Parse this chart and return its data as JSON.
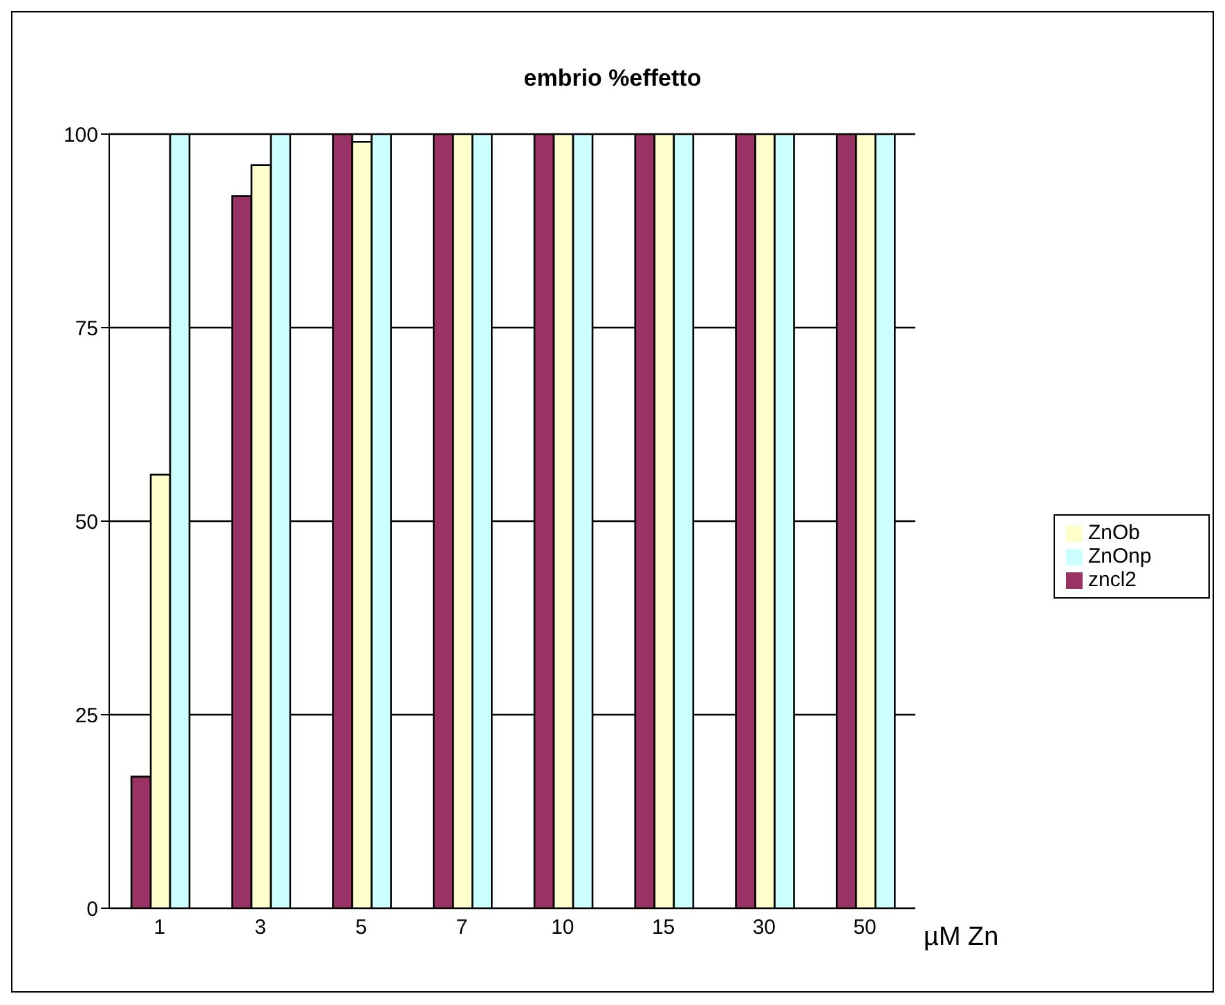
{
  "chart_data": {
    "type": "bar",
    "title": "embrio %effetto",
    "xlabel": "µM Zn",
    "categories": [
      "1",
      "3",
      "5",
      "7",
      "10",
      "15",
      "30",
      "50"
    ],
    "series": [
      {
        "name": "zncl2",
        "color": "#993366",
        "values": [
          17,
          92,
          100,
          100,
          100,
          100,
          100,
          100
        ]
      },
      {
        "name": "ZnOb",
        "color": "#ffffcc",
        "values": [
          56,
          96,
          99,
          100,
          100,
          100,
          100,
          100
        ]
      },
      {
        "name": "ZnOnp",
        "color": "#ccffff",
        "values": [
          100,
          100,
          100,
          100,
          100,
          100,
          100,
          100
        ]
      }
    ],
    "ylim": [
      0,
      100
    ],
    "yticks": [
      0,
      25,
      50,
      75,
      100
    ],
    "grid": "y",
    "legend": "right"
  }
}
